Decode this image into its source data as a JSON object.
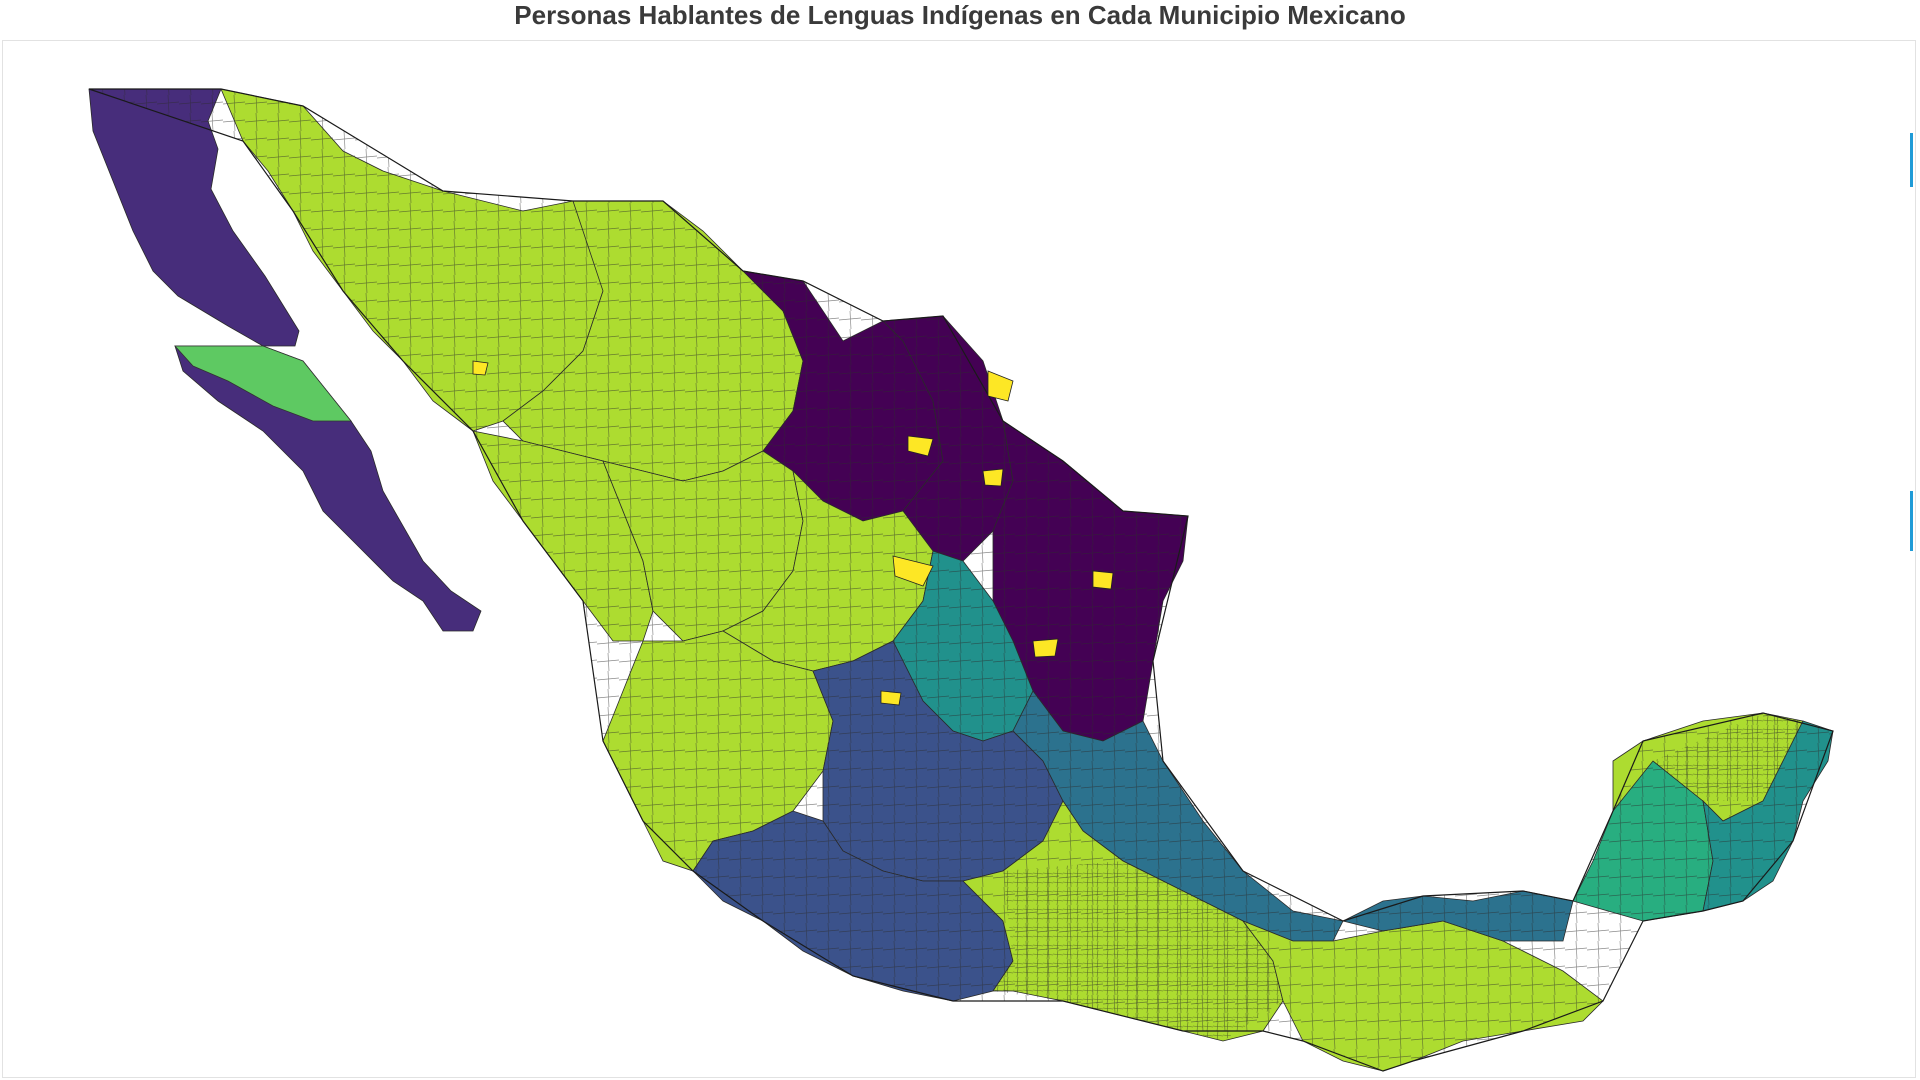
{
  "map": {
    "title": "Personas Hablantes de Lenguas Indígenas en Cada Municipio Mexicano",
    "palette": {
      "v0": "#440154",
      "v1": "#472d7b",
      "v2": "#3b528b",
      "v3": "#2c728e",
      "v4": "#21918c",
      "v5": "#28ae80",
      "v6": "#5ec962",
      "v7": "#addc30",
      "v8": "#fde725"
    },
    "regions": [
      {
        "name": "baja-california-norte",
        "color": "v1"
      },
      {
        "name": "baja-california-sur",
        "color": "v1"
      },
      {
        "name": "sonora",
        "color": "v7"
      },
      {
        "name": "chihuahua",
        "color": "v7"
      },
      {
        "name": "coahuila",
        "color": "v0"
      },
      {
        "name": "nuevo-leon",
        "color": "v0"
      },
      {
        "name": "tamaulipas",
        "color": "v0"
      },
      {
        "name": "sinaloa",
        "color": "v7"
      },
      {
        "name": "durango",
        "color": "v7"
      },
      {
        "name": "zacatecas",
        "color": "v7"
      },
      {
        "name": "san-luis-potosi",
        "color": "v4"
      },
      {
        "name": "jalisco",
        "color": "v7"
      },
      {
        "name": "central-mexico",
        "color": "v2"
      },
      {
        "name": "veracruz",
        "color": "v3"
      },
      {
        "name": "guerrero",
        "color": "v2"
      },
      {
        "name": "oaxaca",
        "color": "v7"
      },
      {
        "name": "chiapas",
        "color": "v7"
      },
      {
        "name": "tabasco",
        "color": "v3"
      },
      {
        "name": "campeche",
        "color": "v5"
      },
      {
        "name": "yucatan",
        "color": "v7"
      },
      {
        "name": "quintana-roo",
        "color": "v4"
      }
    ]
  }
}
